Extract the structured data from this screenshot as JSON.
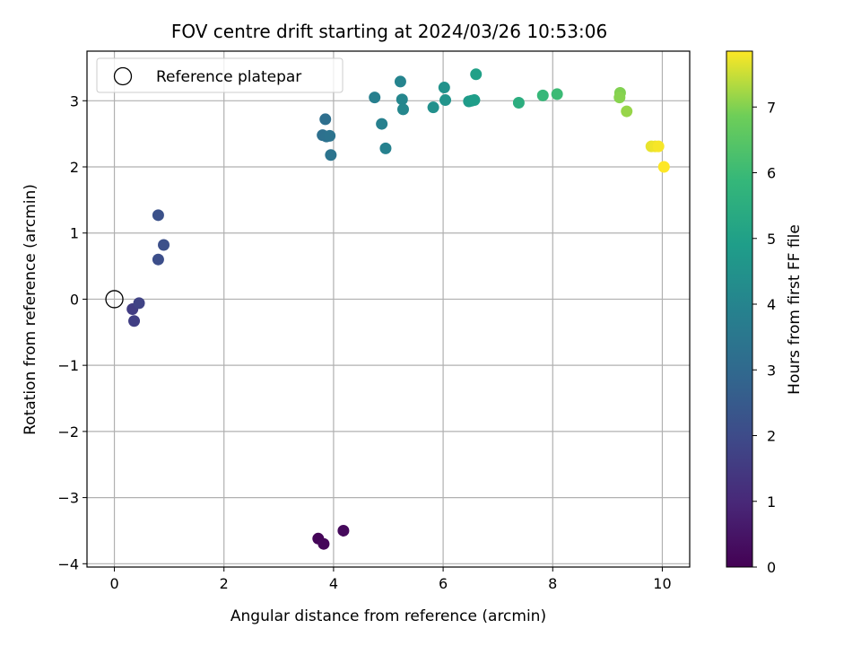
{
  "chart_data": {
    "type": "scatter",
    "title": "FOV centre drift starting at 2024/03/26 10:53:06",
    "xlabel": "Angular distance from reference (arcmin)",
    "ylabel": "Rotation from reference (arcmin)",
    "xlim": [
      -0.5,
      10.5
    ],
    "ylim": [
      -4.05,
      3.75
    ],
    "xticks": [
      0,
      2,
      4,
      6,
      8,
      10
    ],
    "yticks": [
      -4,
      -3,
      -2,
      -1,
      0,
      1,
      2,
      3
    ],
    "grid": true,
    "legend": {
      "location": "upper-left",
      "entries": [
        "Reference platepar"
      ]
    },
    "reference_point": {
      "x": 0,
      "y": 0,
      "label": "Reference platepar"
    },
    "colorbar": {
      "label": "Hours from first FF file",
      "min": 0,
      "max": 7.85,
      "ticks": [
        0,
        1,
        2,
        3,
        4,
        5,
        6,
        7
      ],
      "colormap": "viridis"
    },
    "points": [
      {
        "x": 3.72,
        "y": -3.62,
        "hours": 0.1
      },
      {
        "x": 3.82,
        "y": -3.7,
        "hours": 0.15
      },
      {
        "x": 4.18,
        "y": -3.5,
        "hours": 0.2
      },
      {
        "x": 0.33,
        "y": -0.15,
        "hours": 1.6
      },
      {
        "x": 0.36,
        "y": -0.33,
        "hours": 1.65
      },
      {
        "x": 0.45,
        "y": -0.06,
        "hours": 1.75
      },
      {
        "x": 0.8,
        "y": 0.6,
        "hours": 2.1
      },
      {
        "x": 0.9,
        "y": 0.82,
        "hours": 2.15
      },
      {
        "x": 0.8,
        "y": 1.27,
        "hours": 2.2
      },
      {
        "x": 3.85,
        "y": 2.72,
        "hours": 3.2
      },
      {
        "x": 3.8,
        "y": 2.48,
        "hours": 3.25
      },
      {
        "x": 3.87,
        "y": 2.46,
        "hours": 3.3
      },
      {
        "x": 3.93,
        "y": 2.47,
        "hours": 3.35
      },
      {
        "x": 3.95,
        "y": 2.18,
        "hours": 3.4
      },
      {
        "x": 4.75,
        "y": 3.05,
        "hours": 3.8
      },
      {
        "x": 4.88,
        "y": 2.65,
        "hours": 3.85
      },
      {
        "x": 4.95,
        "y": 2.28,
        "hours": 3.9
      },
      {
        "x": 5.22,
        "y": 3.29,
        "hours": 4.0
      },
      {
        "x": 5.25,
        "y": 3.02,
        "hours": 4.05
      },
      {
        "x": 5.27,
        "y": 2.87,
        "hours": 4.1
      },
      {
        "x": 5.82,
        "y": 2.9,
        "hours": 4.4
      },
      {
        "x": 6.02,
        "y": 3.2,
        "hours": 4.5
      },
      {
        "x": 6.04,
        "y": 3.01,
        "hours": 4.55
      },
      {
        "x": 6.47,
        "y": 2.99,
        "hours": 4.8
      },
      {
        "x": 6.52,
        "y": 3.0,
        "hours": 4.85
      },
      {
        "x": 6.57,
        "y": 3.01,
        "hours": 4.9
      },
      {
        "x": 6.6,
        "y": 3.4,
        "hours": 5.0
      },
      {
        "x": 7.38,
        "y": 2.97,
        "hours": 5.5
      },
      {
        "x": 7.82,
        "y": 3.08,
        "hours": 5.9
      },
      {
        "x": 8.08,
        "y": 3.1,
        "hours": 6.0
      },
      {
        "x": 9.23,
        "y": 3.12,
        "hours": 7.0
      },
      {
        "x": 9.22,
        "y": 3.05,
        "hours": 7.05
      },
      {
        "x": 9.35,
        "y": 2.84,
        "hours": 7.15
      },
      {
        "x": 9.8,
        "y": 2.31,
        "hours": 7.7
      },
      {
        "x": 9.87,
        "y": 2.31,
        "hours": 7.75
      },
      {
        "x": 9.93,
        "y": 2.31,
        "hours": 7.8
      },
      {
        "x": 10.03,
        "y": 2.0,
        "hours": 7.85
      }
    ]
  }
}
